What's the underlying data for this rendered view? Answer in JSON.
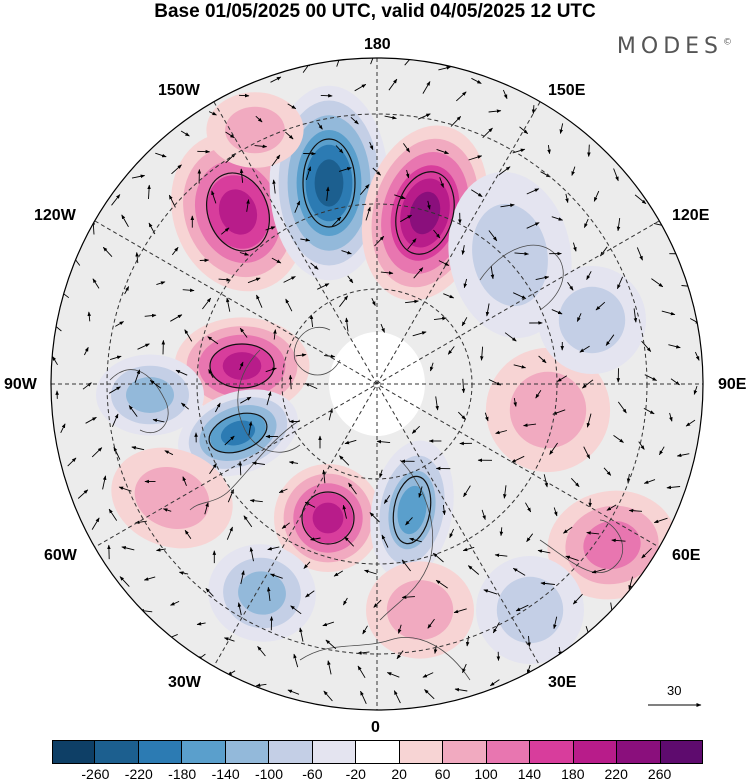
{
  "title": "Base 01/05/2025 00 UTC, valid 04/05/2025 12 UTC",
  "brand": "MODES",
  "brand_mark": "©",
  "longitude_labels": {
    "top": "180",
    "bottom": "0",
    "left": "90W",
    "right": "90E",
    "w150": "150W",
    "e150": "150E",
    "w120": "120W",
    "e120": "120E",
    "w60": "60W",
    "e60": "60E",
    "w30": "30W",
    "e30": "30E"
  },
  "reference_vector": {
    "label": "30"
  },
  "colorbar": {
    "ticks": [
      "-260",
      "-220",
      "-180",
      "-140",
      "-100",
      "-60",
      "-20",
      "20",
      "60",
      "100",
      "140",
      "180",
      "220",
      "260"
    ],
    "colors": [
      "#0e3f66",
      "#1c5f8f",
      "#2c7bb3",
      "#5a9fcc",
      "#93b9da",
      "#c4cfe6",
      "#e4e4f0",
      "#ffffff",
      "#f7d4d4",
      "#f1aac0",
      "#e876b0",
      "#d83d9c",
      "#b81c8a",
      "#8a0f7c",
      "#5e0b6e"
    ]
  },
  "anomaly_cells": [
    {
      "name": "positive-cell",
      "sign": "+",
      "level": 5
    },
    {
      "name": "negative-cell",
      "sign": "-",
      "level": 6
    },
    {
      "name": "positive-cell",
      "sign": "+",
      "level": 6
    },
    {
      "name": "negative-cell",
      "sign": "-",
      "level": 2
    },
    {
      "name": "positive-cell",
      "sign": "+",
      "level": 5
    },
    {
      "name": "negative-cell",
      "sign": "-",
      "level": 3
    },
    {
      "name": "negative-cell",
      "sign": "-",
      "level": 5
    },
    {
      "name": "positive-cell",
      "sign": "+",
      "level": 5
    },
    {
      "name": "negative-cell",
      "sign": "-",
      "level": 4
    },
    {
      "name": "positive-cell",
      "sign": "+",
      "level": 2
    },
    {
      "name": "negative-cell",
      "sign": "-",
      "level": 3
    },
    {
      "name": "positive-cell",
      "sign": "+",
      "level": 2
    },
    {
      "name": "positive-cell",
      "sign": "+",
      "level": 3
    },
    {
      "name": "negative-cell",
      "sign": "-",
      "level": 2
    },
    {
      "name": "positive-cell",
      "sign": "+",
      "level": 2
    },
    {
      "name": "negative-cell",
      "sign": "-",
      "level": 2
    },
    {
      "name": "positive-cell",
      "sign": "+",
      "level": 2
    }
  ],
  "colors": {
    "background_land": "#e8e8e8",
    "grid": "#333333",
    "coast": "#4a4a4a"
  }
}
